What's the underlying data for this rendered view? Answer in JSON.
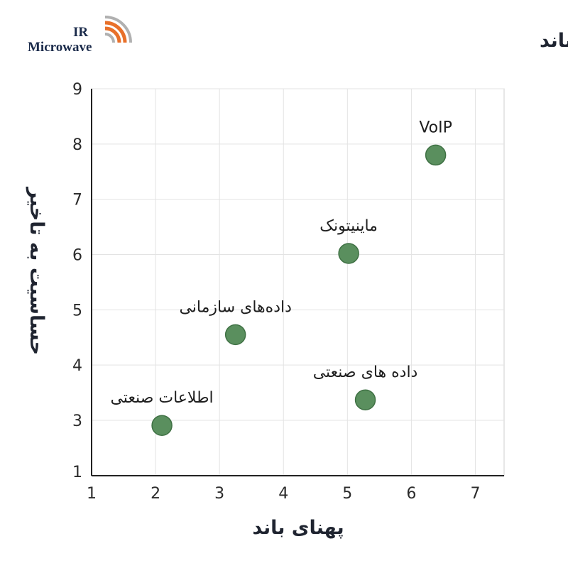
{
  "logo": {
    "line1": "IR",
    "line2": "Microwave"
  },
  "chart_data": {
    "type": "scatter",
    "title": "حساسیت به تاخیر و نیاز پهنای باند",
    "xlabel": "پهنای باند",
    "ylabel": "حساسیت به تاخیر",
    "xlim": [
      1,
      7.45
    ],
    "ylim": [
      1,
      9
    ],
    "xticks": [
      1,
      2,
      3,
      4,
      5,
      6,
      7
    ],
    "yticks": [
      1,
      3,
      4,
      5,
      6,
      7,
      8,
      9
    ],
    "grid": true,
    "marker_color": "#5a8f5e",
    "points": [
      {
        "label": "اطلاعات صنعتی",
        "x": 2.1,
        "y": 2.8
      },
      {
        "label": "داده‌های سازمانی",
        "x": 3.25,
        "y": 4.55
      },
      {
        "label": "ماینیتونک",
        "x": 5.02,
        "y": 6.02
      },
      {
        "label": "داده های صنعتی",
        "x": 5.28,
        "y": 3.37
      },
      {
        "label": "VoIP",
        "x": 6.38,
        "y": 7.8
      }
    ]
  }
}
